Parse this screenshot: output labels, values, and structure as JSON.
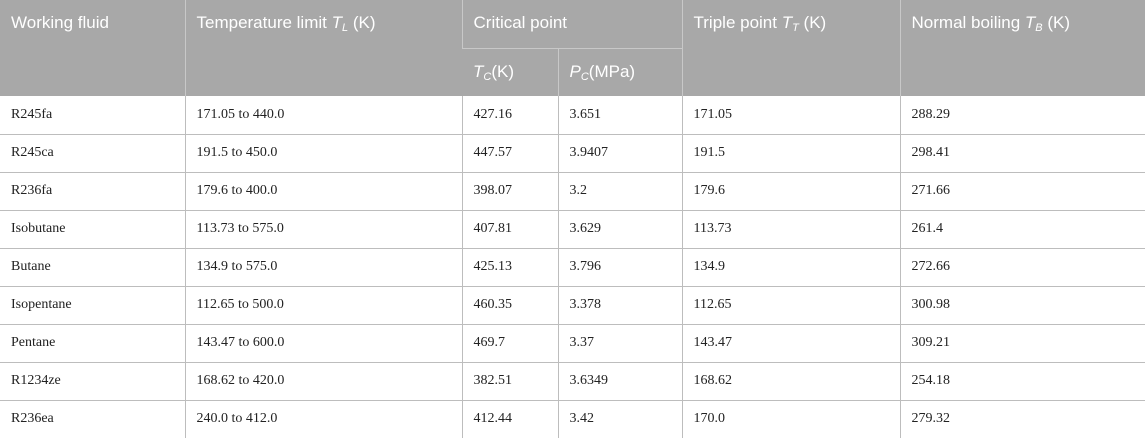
{
  "headers": {
    "working_fluid": "Working fluid",
    "temp_limit": {
      "text": "Temperature limit ",
      "sym": "T",
      "sub": "L",
      "unit": " (K)"
    },
    "critical_point": "Critical point",
    "tc": {
      "sym": "T",
      "sub": "C",
      "unit": "(K)"
    },
    "pc": {
      "sym": "P",
      "sub": "C",
      "unit": "(MPa)"
    },
    "triple_point": {
      "text": "Triple point ",
      "sym": "T",
      "sub": "T",
      "unit": " (K)"
    },
    "normal_boiling": {
      "text": "Normal boiling ",
      "sym": "T",
      "sub": "B",
      "unit": " (K)"
    }
  },
  "rows": [
    {
      "fluid": "R245fa",
      "range": "171.05 to 440.0",
      "tc": "427.16",
      "pc": "3.651",
      "tt": "171.05",
      "tb": "288.29"
    },
    {
      "fluid": "R245ca",
      "range": "191.5 to 450.0",
      "tc": "447.57",
      "pc": "3.9407",
      "tt": "191.5",
      "tb": "298.41"
    },
    {
      "fluid": "R236fa",
      "range": "179.6 to 400.0",
      "tc": "398.07",
      "pc": "3.2",
      "tt": "179.6",
      "tb": "271.66"
    },
    {
      "fluid": "Isobutane",
      "range": "113.73 to 575.0",
      "tc": "407.81",
      "pc": "3.629",
      "tt": "113.73",
      "tb": "261.4"
    },
    {
      "fluid": "Butane",
      "range": "134.9 to 575.0",
      "tc": "425.13",
      "pc": "3.796",
      "tt": "134.9",
      "tb": "272.66"
    },
    {
      "fluid": "Isopentane",
      "range": "112.65 to 500.0",
      "tc": "460.35",
      "pc": "3.378",
      "tt": "112.65",
      "tb": "300.98"
    },
    {
      "fluid": "Pentane",
      "range": "143.47 to 600.0",
      "tc": "469.7",
      "pc": "3.37",
      "tt": "143.47",
      "tb": "309.21"
    },
    {
      "fluid": "R1234ze",
      "range": "168.62 to 420.0",
      "tc": "382.51",
      "pc": "3.6349",
      "tt": "168.62",
      "tb": "254.18"
    },
    {
      "fluid": "R236ea",
      "range": "240.0 to 412.0",
      "tc": "412.44",
      "pc": "3.42",
      "tt": "170.0",
      "tb": "279.32"
    }
  ]
}
